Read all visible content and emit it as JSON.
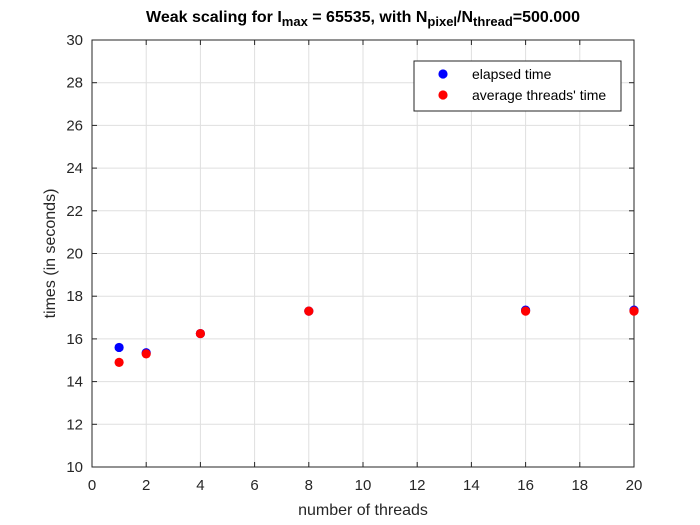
{
  "chart_data": {
    "type": "scatter",
    "title": {
      "parts": [
        {
          "text": "Weak scaling for I",
          "sub": false
        },
        {
          "text": "max",
          "sub": true
        },
        {
          "text": " = 65535, with N",
          "sub": false
        },
        {
          "text": "pixel",
          "sub": true
        },
        {
          "text": "/N",
          "sub": false
        },
        {
          "text": "thread",
          "sub": true
        },
        {
          "text": "=500.000",
          "sub": false
        }
      ]
    },
    "xlabel": "number of threads",
    "ylabel": "times (in seconds)",
    "xlim": [
      0,
      20
    ],
    "ylim": [
      10,
      30
    ],
    "xticks": [
      0,
      2,
      4,
      6,
      8,
      10,
      12,
      14,
      16,
      18,
      20
    ],
    "yticks": [
      10,
      12,
      14,
      16,
      18,
      20,
      22,
      24,
      26,
      28,
      30
    ],
    "grid": true,
    "legend_position": "top-right",
    "series": [
      {
        "name": "elapsed time",
        "color": "#0000ff",
        "x": [
          1,
          2,
          4,
          8,
          16,
          20
        ],
        "y": [
          15.6,
          15.35,
          16.25,
          17.3,
          17.35,
          17.35
        ]
      },
      {
        "name": "average threads' time",
        "color": "#ff0000",
        "x": [
          1,
          2,
          4,
          8,
          16,
          20
        ],
        "y": [
          14.9,
          15.3,
          16.25,
          17.3,
          17.3,
          17.3
        ]
      }
    ]
  }
}
